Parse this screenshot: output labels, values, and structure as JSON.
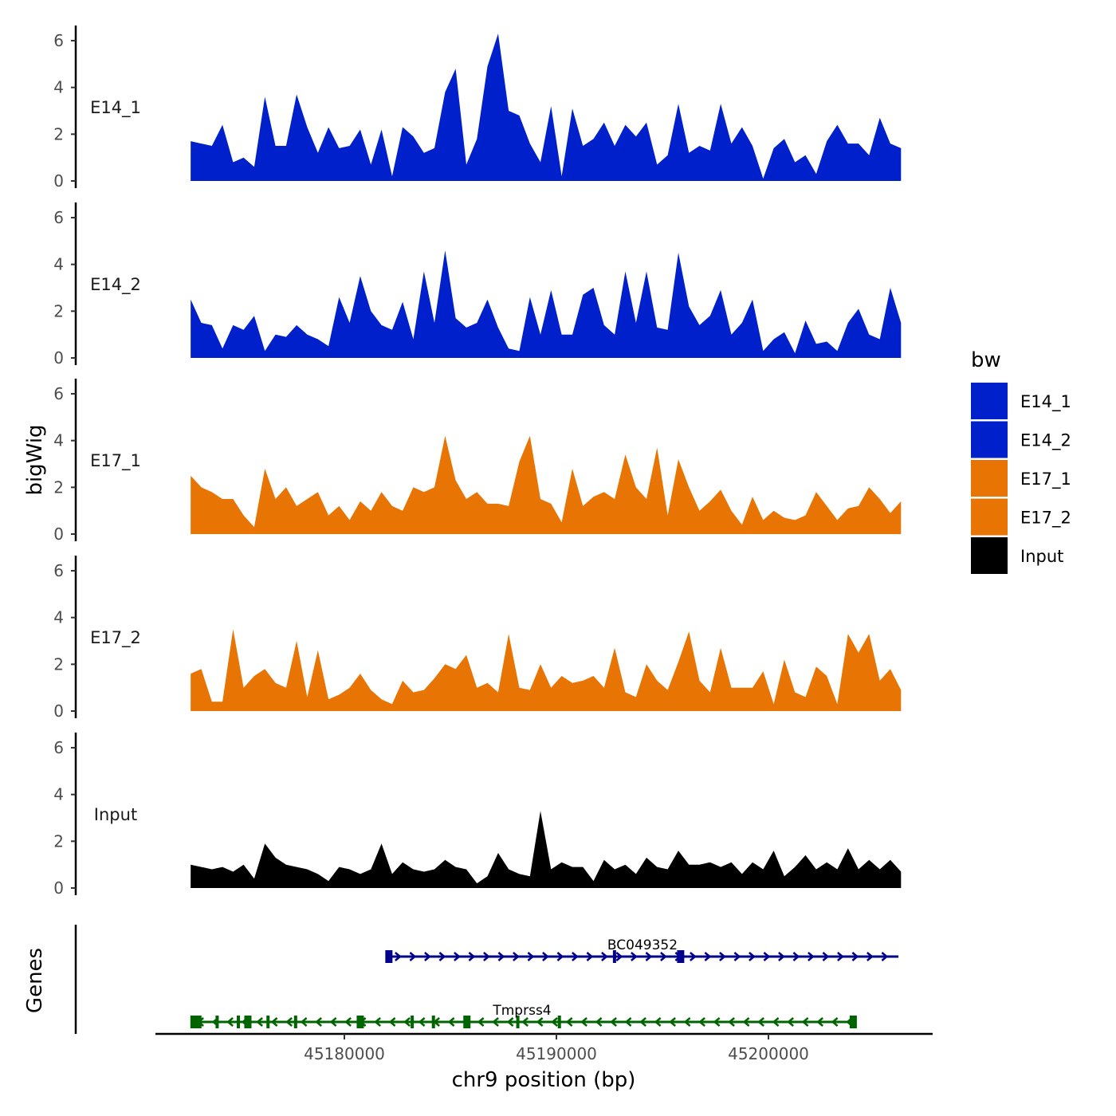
{
  "chart_data": {
    "type": "area",
    "ylabel": "bigWig",
    "genes_label": "Genes",
    "xlabel": "chr9 position (bp)",
    "x_start": 45172750,
    "x_step": 500,
    "xlim": [
      45173000,
      45206200
    ],
    "ylim": [
      0,
      6.5
    ],
    "yticks": [
      0,
      2,
      4,
      6
    ],
    "xticks": [
      45180000,
      45190000,
      45200000
    ],
    "legend": {
      "title": "bw",
      "position": "right",
      "entries": [
        {
          "name": "E14_1",
          "color": "#0020CC"
        },
        {
          "name": "E14_2",
          "color": "#0020CC"
        },
        {
          "name": "E17_1",
          "color": "#E87503"
        },
        {
          "name": "E17_2",
          "color": "#E87503"
        },
        {
          "name": "Input",
          "color": "#000000"
        }
      ]
    },
    "series": [
      {
        "name": "E14_1",
        "color": "#0020CC",
        "values": [
          1.7,
          1.6,
          1.5,
          2.4,
          0.8,
          1.0,
          0.6,
          3.6,
          1.5,
          1.5,
          3.7,
          2.3,
          1.2,
          2.3,
          1.4,
          1.5,
          2.2,
          0.7,
          2.2,
          0.2,
          2.3,
          1.9,
          1.2,
          1.4,
          3.8,
          4.8,
          0.7,
          1.8,
          4.9,
          6.3,
          3.0,
          2.8,
          1.6,
          0.8,
          3.2,
          0.2,
          3.1,
          1.5,
          1.8,
          2.5,
          1.5,
          2.4,
          1.9,
          2.5,
          0.7,
          1.1,
          3.3,
          1.2,
          1.5,
          1.3,
          3.3,
          1.6,
          2.3,
          1.5,
          0.1,
          1.4,
          1.8,
          0.8,
          1.1,
          0.3,
          1.7,
          2.4,
          1.6,
          1.6,
          1.1,
          2.7,
          1.6,
          1.4
        ]
      },
      {
        "name": "E14_2",
        "color": "#0020CC",
        "values": [
          2.5,
          1.5,
          1.4,
          0.4,
          1.4,
          1.2,
          1.8,
          0.3,
          1.0,
          0.9,
          1.4,
          1.0,
          0.8,
          0.5,
          2.6,
          1.5,
          3.5,
          2.0,
          1.4,
          1.2,
          2.4,
          0.8,
          3.7,
          1.5,
          4.6,
          1.7,
          1.3,
          1.5,
          2.5,
          1.3,
          0.4,
          0.3,
          2.6,
          1.0,
          2.9,
          1.0,
          1.0,
          2.7,
          3.0,
          1.4,
          1.0,
          3.7,
          1.5,
          3.7,
          1.3,
          1.2,
          4.5,
          2.2,
          1.4,
          1.8,
          2.9,
          1.0,
          1.5,
          2.5,
          0.3,
          0.8,
          1.1,
          0.2,
          1.6,
          0.6,
          0.7,
          0.3,
          1.5,
          2.1,
          1.0,
          0.8,
          3.0,
          1.5
        ]
      },
      {
        "name": "E17_1",
        "color": "#E87503",
        "values": [
          2.5,
          2.0,
          1.8,
          1.5,
          1.5,
          0.8,
          0.3,
          2.8,
          1.5,
          2.0,
          1.2,
          1.5,
          1.8,
          0.8,
          1.2,
          0.6,
          1.4,
          1.0,
          1.8,
          1.2,
          1.0,
          2.0,
          1.8,
          2.0,
          4.2,
          2.3,
          1.5,
          1.8,
          1.3,
          1.3,
          1.2,
          3.1,
          4.2,
          1.5,
          1.3,
          0.5,
          2.8,
          1.2,
          1.6,
          1.8,
          1.5,
          3.4,
          2.0,
          1.5,
          3.7,
          0.8,
          3.2,
          2.0,
          1.0,
          1.4,
          1.9,
          1.0,
          0.4,
          1.6,
          0.6,
          1.0,
          0.7,
          0.6,
          0.8,
          1.8,
          1.2,
          0.6,
          1.1,
          1.2,
          2.0,
          1.5,
          0.9,
          1.4
        ]
      },
      {
        "name": "E17_2",
        "color": "#E87503",
        "values": [
          1.6,
          1.8,
          0.4,
          0.4,
          3.5,
          1.0,
          1.5,
          1.8,
          1.2,
          1.0,
          3.0,
          0.6,
          2.6,
          0.5,
          0.7,
          1.0,
          1.6,
          0.9,
          0.5,
          0.3,
          1.3,
          0.8,
          0.9,
          1.4,
          2.0,
          1.8,
          2.4,
          1.0,
          1.2,
          0.8,
          3.3,
          1.0,
          0.9,
          2.0,
          1.0,
          1.5,
          1.2,
          1.3,
          1.5,
          1.0,
          2.7,
          0.8,
          0.6,
          2.0,
          1.3,
          0.9,
          2.1,
          3.4,
          1.3,
          0.8,
          2.7,
          1.0,
          1.0,
          1.0,
          1.7,
          0.3,
          2.2,
          0.8,
          0.6,
          1.9,
          1.5,
          0.3,
          3.3,
          2.5,
          3.3,
          1.3,
          1.8,
          0.9
        ]
      },
      {
        "name": "Input",
        "color": "#000000",
        "values": [
          1.0,
          0.9,
          0.8,
          0.9,
          0.7,
          1.0,
          0.4,
          1.9,
          1.3,
          1.0,
          0.9,
          0.8,
          0.6,
          0.3,
          0.9,
          0.8,
          0.6,
          0.8,
          1.9,
          0.6,
          1.1,
          0.8,
          0.7,
          0.8,
          1.2,
          0.9,
          0.8,
          0.2,
          0.5,
          1.5,
          0.8,
          0.6,
          0.5,
          3.3,
          0.8,
          1.1,
          0.9,
          0.9,
          0.3,
          1.2,
          0.8,
          1.0,
          0.6,
          1.3,
          0.9,
          0.8,
          1.6,
          1.0,
          1.0,
          1.1,
          0.9,
          1.1,
          0.6,
          1.1,
          0.8,
          1.6,
          0.5,
          0.9,
          1.4,
          0.8,
          1.1,
          0.8,
          1.7,
          0.8,
          1.2,
          0.8,
          1.2,
          0.7
        ]
      }
    ],
    "genes": [
      {
        "name": "BC049352",
        "strand": "+",
        "color": "#00008B",
        "start": 45182100,
        "end": 45206130,
        "exons": [
          45182100,
          45192740,
          45195860
        ]
      },
      {
        "name": "Tmprss4",
        "strand": "-",
        "color": "#006400",
        "start": 45172750,
        "end": 45204000,
        "exons": [
          45173000,
          45174000,
          45175000,
          45175450,
          45176400,
          45177700,
          45180750,
          45183200,
          45184200,
          45185780,
          45188180,
          45190140,
          45204000
        ]
      }
    ]
  }
}
